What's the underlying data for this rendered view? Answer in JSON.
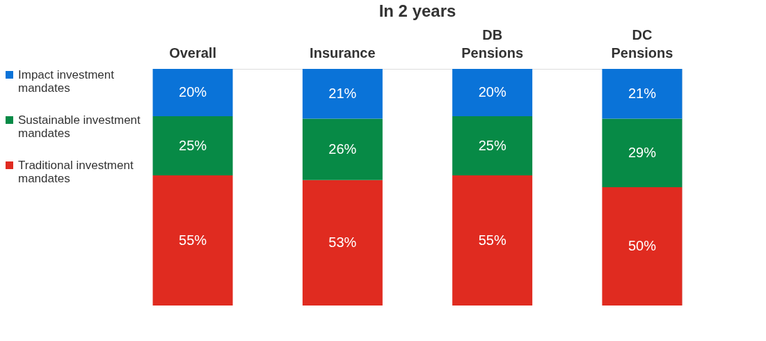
{
  "chart_data": {
    "type": "bar",
    "title": "In 2 years",
    "stacked": true,
    "legend": "left",
    "categories": [
      "Overall",
      "Insurance",
      "DB Pensions",
      "DC Pensions"
    ],
    "series": [
      {
        "name": "Traditional investment mandates",
        "color": "#e02b20",
        "values": [
          55,
          53,
          55,
          50
        ],
        "value_labels": [
          "55%",
          "53%",
          "55%",
          "50%"
        ]
      },
      {
        "name": "Sustainable investment mandates",
        "color": "#078a46",
        "values": [
          25,
          26,
          25,
          29
        ],
        "value_labels": [
          "25%",
          "26%",
          "25%",
          "29%"
        ]
      },
      {
        "name": "Impact investment mandates",
        "color": "#0a73d8",
        "values": [
          20,
          21,
          20,
          21
        ],
        "value_labels": [
          "20%",
          "21%",
          "20%",
          "21%"
        ]
      }
    ]
  }
}
